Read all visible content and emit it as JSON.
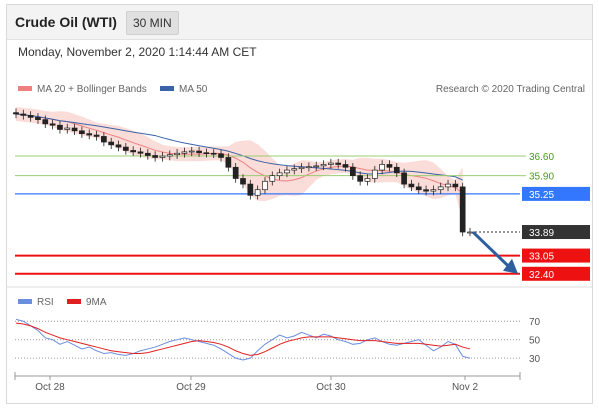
{
  "header": {
    "title": "Crude Oil (WTI)",
    "timeframe": "30 MIN"
  },
  "datetime": "Monday, November 2, 2020 1:14:44 AM CET",
  "legend": {
    "ma20_label": "MA 20 + Bollinger Bands",
    "ma50_label": "MA 50",
    "credit": "Research © 2020 Trading Central",
    "rsi_label": "RSI",
    "ma9_label": "9MA"
  },
  "colors": {
    "ma20": "#f08080",
    "bollinger_fill": "#f7c9c3",
    "ma50": "#3a63a8",
    "resistance": "#9acd72",
    "pivot": "#3377ff",
    "support": "#ee1111",
    "current": "#333333",
    "arrow": "#2d5f9e",
    "rsi": "#6a8fe0",
    "ma9": "#e02020",
    "candle_up": "#ffffff",
    "candle_down": "#222222"
  },
  "chart_data": {
    "type": "candlestick",
    "x_tick_labels": [
      "Oct 28",
      "Oct 29",
      "Oct 30",
      "Nov 2"
    ],
    "price_levels": [
      {
        "name": "resistance-2",
        "value": 36.6,
        "label": "36.60"
      },
      {
        "name": "resistance-1",
        "value": 35.9,
        "label": "35.90"
      },
      {
        "name": "pivot",
        "value": 35.25,
        "label": "35.25"
      },
      {
        "name": "current-price",
        "value": 33.89,
        "label": "33.89"
      },
      {
        "name": "support-1",
        "value": 33.05,
        "label": "33.05"
      },
      {
        "name": "support-2",
        "value": 32.4,
        "label": "32.40"
      }
    ],
    "close": [
      38.1,
      38.05,
      37.98,
      37.9,
      37.75,
      37.7,
      37.55,
      37.6,
      37.5,
      37.4,
      37.35,
      37.3,
      37.1,
      37.0,
      36.92,
      36.8,
      36.75,
      36.7,
      36.62,
      36.55,
      36.6,
      36.65,
      36.7,
      36.75,
      36.78,
      36.72,
      36.7,
      36.68,
      36.55,
      36.2,
      35.8,
      35.6,
      35.2,
      35.4,
      35.7,
      35.9,
      36.0,
      36.1,
      36.15,
      36.2,
      36.22,
      36.25,
      36.3,
      36.35,
      36.3,
      36.2,
      35.9,
      35.7,
      35.8,
      36.1,
      36.3,
      36.2,
      36.0,
      35.6,
      35.5,
      35.4,
      35.35,
      35.4,
      35.5,
      35.6,
      35.5,
      33.89,
      33.89
    ],
    "indicators": {
      "rsi": {
        "values": [
          72,
          70,
          65,
          60,
          52,
          50,
          45,
          48,
          44,
          40,
          42,
          38,
          35,
          36,
          34,
          33,
          35,
          38,
          40,
          42,
          45,
          48,
          50,
          52,
          50,
          48,
          46,
          44,
          40,
          35,
          30,
          28,
          30,
          38,
          45,
          50,
          55,
          52,
          54,
          58,
          55,
          52,
          56,
          54,
          50,
          48,
          45,
          46,
          50,
          52,
          48,
          45,
          44,
          46,
          48,
          50,
          44,
          38,
          42,
          48,
          45,
          32,
          30
        ],
        "levels": [
          70,
          50,
          30
        ]
      },
      "ma9": {
        "values": [
          68,
          67,
          65,
          62,
          58,
          55,
          52,
          50,
          48,
          46,
          44,
          42,
          40,
          38,
          37,
          36,
          35,
          35,
          36,
          38,
          40,
          42,
          44,
          46,
          48,
          49,
          48,
          47,
          45,
          42,
          38,
          35,
          33,
          34,
          37,
          41,
          45,
          48,
          50,
          52,
          53,
          53,
          53,
          53,
          52,
          51,
          50,
          49,
          49,
          49,
          48,
          47,
          46,
          46,
          46,
          46,
          45,
          44,
          43,
          44,
          45,
          42,
          40
        ]
      }
    },
    "rsi_levels": [
      70,
      50,
      30
    ]
  }
}
